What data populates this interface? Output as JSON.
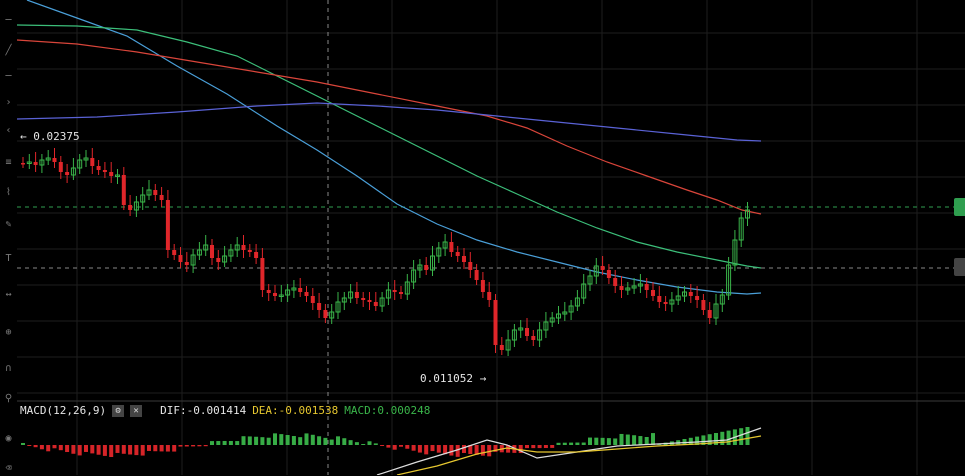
{
  "price_annotations": {
    "high_label": "← 0.02375",
    "low_label": "0.011052 →"
  },
  "macd": {
    "name": "MACD(12,26,9)",
    "dif": "DIF:-0.001414",
    "dea": "DEA:-0.001538",
    "macd": "MACD:0.000248",
    "settings_icon": "gear-icon",
    "close_icon": "close-icon"
  },
  "colors": {
    "up": "#3ab54a",
    "down": "#e0262a",
    "ma_blue": "#4a9fd8",
    "ma_green": "#3cbf7a",
    "ma_red": "#d9453a",
    "ma_purple": "#5a62d6",
    "dif_line": "#dddddd",
    "dea_line": "#e6c72f",
    "price_tag": "#2f9e4f"
  },
  "toolbar_icons": [
    "crosshair-icon",
    "trendline-icon",
    "horizontal-line-icon",
    "ray-icon",
    "channel-icon",
    "fibonacci-icon",
    "pattern-icon",
    "brush-icon",
    "text-icon",
    "measure-icon",
    "zoom-icon",
    "magnet-icon",
    "lock-icon",
    "eye-icon",
    "trash-icon"
  ]
}
